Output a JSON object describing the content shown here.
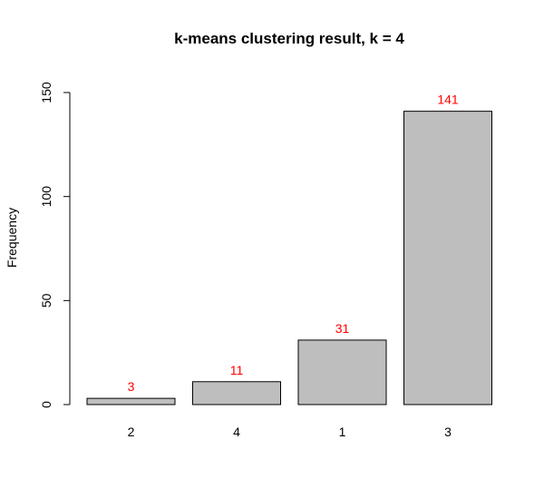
{
  "chart_data": {
    "type": "bar",
    "title": "k-means clustering result, k = 4",
    "xlabel": "",
    "ylabel": "Frequency",
    "categories": [
      "2",
      "4",
      "1",
      "3"
    ],
    "values": [
      3,
      11,
      31,
      141
    ],
    "data_labels": [
      "3",
      "11",
      "31",
      "141"
    ],
    "ylim": [
      0,
      150
    ],
    "yticks": [
      0,
      50,
      100,
      150
    ],
    "ytick_labels": [
      "0",
      "50",
      "100",
      "150"
    ],
    "grid": false,
    "legend": "none",
    "colors": {
      "bar_fill": "#bebebe",
      "bar_stroke": "#000000",
      "data_label": "#ff0000",
      "axis": "#000000",
      "text": "#000000"
    }
  }
}
